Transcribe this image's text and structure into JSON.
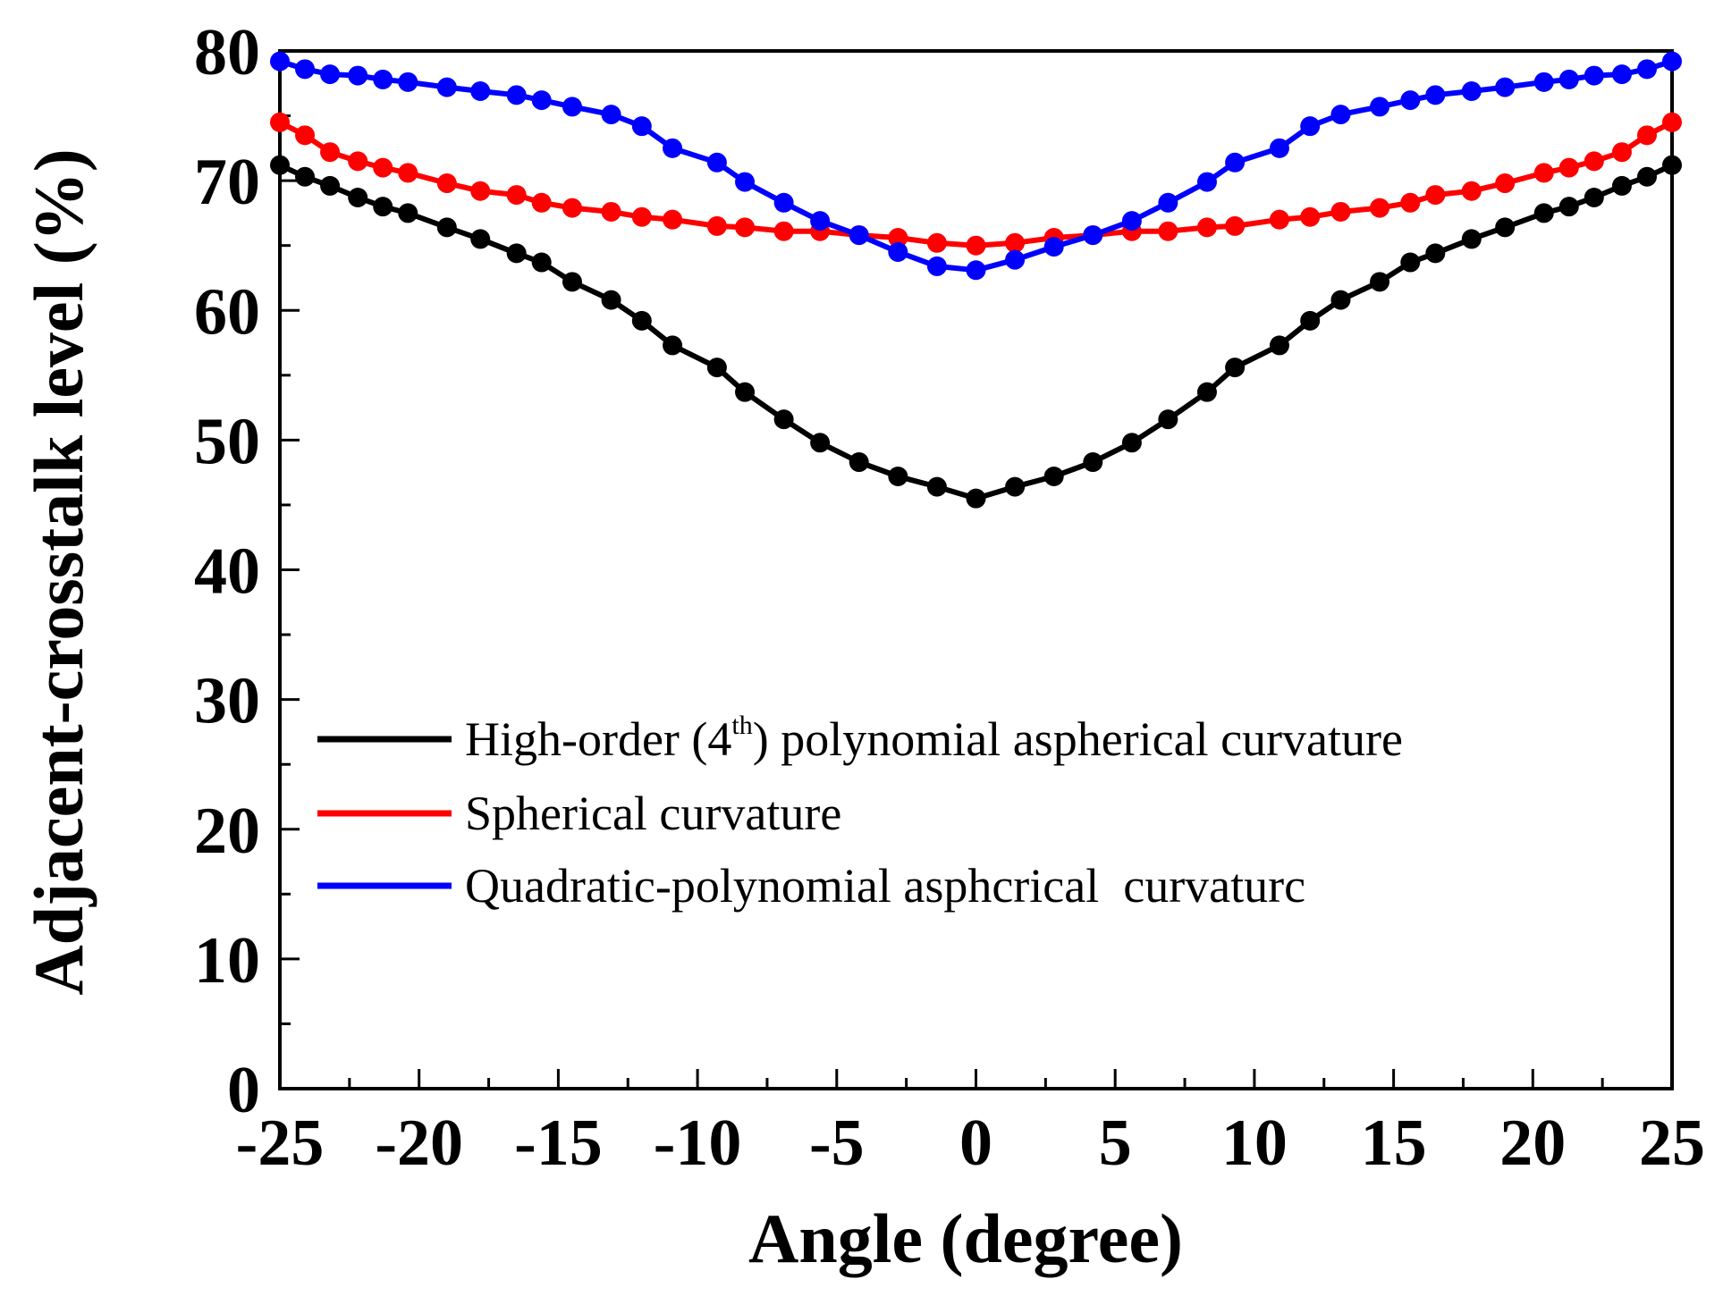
{
  "chart_data": {
    "type": "line",
    "title": "",
    "xlabel": "Angle (degree)",
    "ylabel": "Adjacent-crosstalk level (%)",
    "xlim": [
      -25,
      25
    ],
    "ylim": [
      0,
      80
    ],
    "xticks": [
      -25,
      -20,
      -15,
      -10,
      -5,
      0,
      5,
      10,
      15,
      20,
      25
    ],
    "xtick_labels": [
      "-25",
      "-20",
      "-15",
      "-10",
      "-5",
      "0",
      "5",
      "10",
      "15",
      "20",
      "25"
    ],
    "yticks": [
      0,
      10,
      20,
      30,
      40,
      50,
      60,
      70,
      80
    ],
    "ytick_labels": [
      "0",
      "10",
      "20",
      "30",
      "40",
      "50",
      "60",
      "70",
      "80"
    ],
    "grid": false,
    "legend_position": "center-left",
    "x": [
      -25,
      -24.1,
      -23.2,
      -22.2,
      -21.3,
      -20.4,
      -19,
      -17.8,
      -16.5,
      -15.6,
      -14.5,
      -13.1,
      -12,
      -10.9,
      -9.3,
      -8.3,
      -6.9,
      -5.6,
      -4.2,
      -2.8,
      -1.4,
      0,
      1.4,
      2.8,
      4.2,
      5.6,
      6.9,
      8.3,
      9.3,
      10.9,
      12,
      13.1,
      14.5,
      15.6,
      16.5,
      17.8,
      19,
      20.4,
      21.3,
      22.2,
      23.2,
      24.1,
      25
    ],
    "series": [
      {
        "name": "High-order (4th) polynomial aspherical curvature",
        "legend_main": "High-order (4",
        "legend_sup": "th",
        "legend_tail": ") polynomial aspherical curvature",
        "color": "#000000",
        "values": [
          71.2,
          70.3,
          69.6,
          68.7,
          68.0,
          67.5,
          66.4,
          65.5,
          64.4,
          63.7,
          62.2,
          60.8,
          59.2,
          57.3,
          55.6,
          53.7,
          51.6,
          49.8,
          48.3,
          47.2,
          46.4,
          45.5,
          46.4,
          47.2,
          48.3,
          49.8,
          51.6,
          53.7,
          55.6,
          57.3,
          59.2,
          60.8,
          62.2,
          63.7,
          64.4,
          65.5,
          66.4,
          67.5,
          68.0,
          68.7,
          69.6,
          70.3,
          71.2
        ]
      },
      {
        "name": "Spherical curvature",
        "color": "#ff0000",
        "values": [
          74.5,
          73.5,
          72.2,
          71.5,
          71.0,
          70.6,
          69.8,
          69.2,
          68.9,
          68.3,
          67.9,
          67.6,
          67.2,
          67.0,
          66.5,
          66.4,
          66.1,
          66.1,
          65.8,
          65.6,
          65.2,
          65.0,
          65.2,
          65.6,
          65.8,
          66.1,
          66.1,
          66.4,
          66.5,
          67.0,
          67.2,
          67.6,
          67.9,
          68.3,
          68.9,
          69.2,
          69.8,
          70.6,
          71.0,
          71.5,
          72.2,
          73.5,
          74.5
        ]
      },
      {
        "name": "Quadratic-polynomial asphcrical  curvaturc",
        "color": "#0000ff",
        "values": [
          79.2,
          78.6,
          78.2,
          78.1,
          77.8,
          77.6,
          77.2,
          76.9,
          76.6,
          76.2,
          75.7,
          75.1,
          74.2,
          72.5,
          71.4,
          69.9,
          68.3,
          66.9,
          65.8,
          64.5,
          63.4,
          63.1,
          63.9,
          64.9,
          65.8,
          66.9,
          68.3,
          69.9,
          71.4,
          72.5,
          74.2,
          75.1,
          75.7,
          76.2,
          76.6,
          76.9,
          77.2,
          77.6,
          77.8,
          78.1,
          78.2,
          78.6,
          79.2
        ]
      }
    ]
  }
}
